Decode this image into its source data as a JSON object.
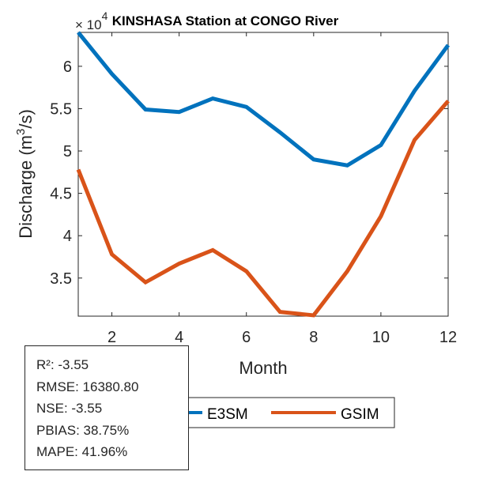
{
  "chart_data": {
    "type": "line",
    "title": "KINSHASA  Station at  CONGO  River",
    "xlabel": "Month",
    "ylabel_main": "Discharge (m",
    "ylabel_sup": "3",
    "ylabel_tail": "/s)",
    "y_exponent_label": "× 10",
    "y_exponent": "4",
    "xlim": [
      1,
      12
    ],
    "ylim": [
      3.05,
      6.4
    ],
    "x_ticks": [
      2,
      4,
      6,
      8,
      10,
      12
    ],
    "y_ticks": [
      3.5,
      4,
      4.5,
      5,
      5.5,
      6
    ],
    "y_tick_labels": [
      "3.5",
      "4",
      "4.5",
      "5",
      "5.5",
      "6"
    ],
    "x_tick_labels": [
      "2",
      "4",
      "6",
      "8",
      "10",
      "12"
    ],
    "x": [
      1,
      2,
      3,
      4,
      5,
      6,
      7,
      8,
      9,
      10,
      11,
      12
    ],
    "series": [
      {
        "name": "E3SM",
        "color": "#0072BD",
        "values": [
          6.4,
          5.91,
          5.49,
          5.46,
          5.62,
          5.52,
          5.22,
          4.9,
          4.83,
          5.07,
          5.71,
          6.25
        ]
      },
      {
        "name": "GSIM",
        "color": "#D95319",
        "values": [
          4.78,
          3.78,
          3.45,
          3.67,
          3.83,
          3.58,
          3.1,
          3.06,
          3.58,
          4.23,
          5.13,
          5.59
        ]
      }
    ],
    "legend": [
      "E3SM",
      "GSIM"
    ],
    "legend_position": "bottom",
    "grid": false
  },
  "stats": {
    "r2": "R²: -3.55",
    "rmse": "RMSE: 16380.80",
    "nse": "NSE: -3.55",
    "pbias": "PBIAS: 38.75%",
    "mape": "MAPE: 41.96%"
  }
}
